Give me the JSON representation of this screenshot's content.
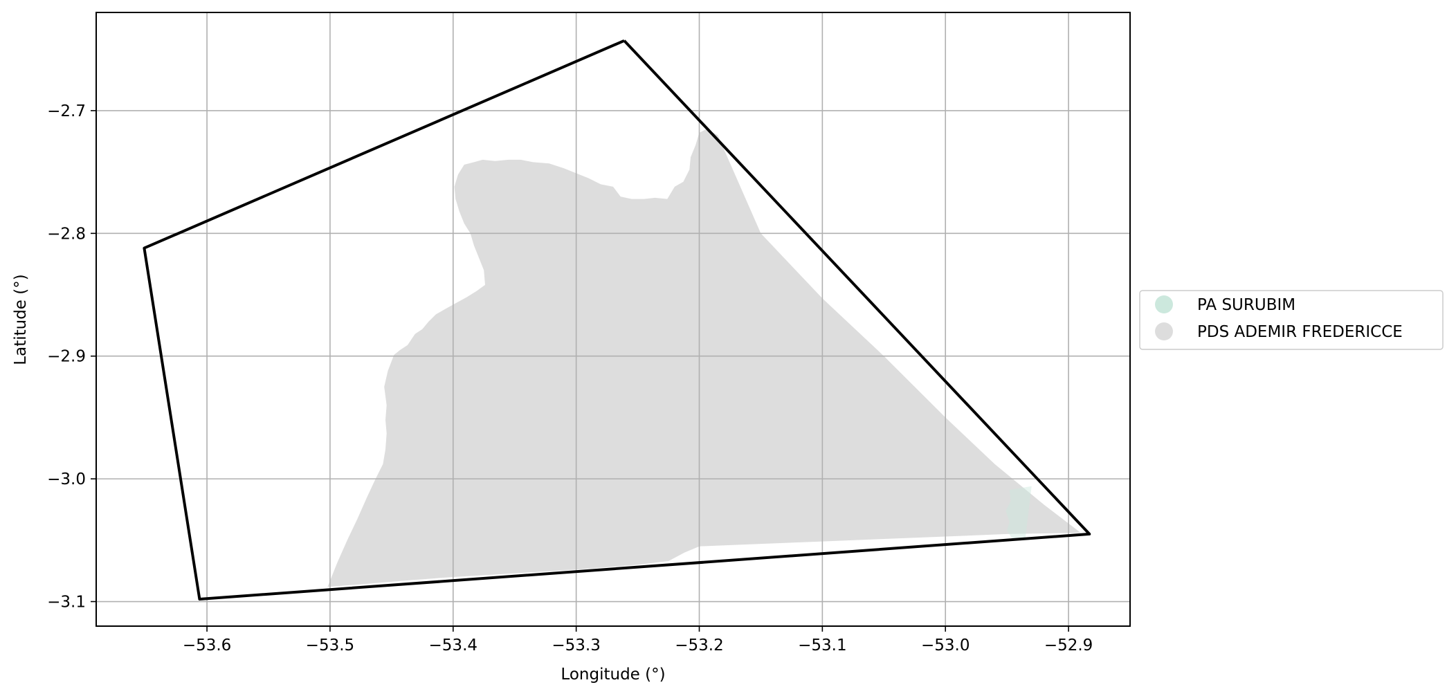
{
  "chart_data": {
    "type": "map",
    "title": "",
    "xlabel": "Longitude (°)",
    "ylabel": "Latitude (°)",
    "xlim": [
      -53.69,
      -52.85
    ],
    "ylim": [
      -3.12,
      -2.62
    ],
    "grid": true,
    "x_ticks": [
      {
        "value": -53.6,
        "label": "−53.6"
      },
      {
        "value": -53.5,
        "label": "−53.5"
      },
      {
        "value": -53.4,
        "label": "−53.4"
      },
      {
        "value": -53.3,
        "label": "−53.3"
      },
      {
        "value": -53.2,
        "label": "−53.2"
      },
      {
        "value": -53.1,
        "label": "−53.1"
      },
      {
        "value": -53.0,
        "label": "−53.0"
      },
      {
        "value": -52.9,
        "label": "−52.9"
      }
    ],
    "y_ticks": [
      {
        "value": -2.7,
        "label": "−2.7"
      },
      {
        "value": -2.8,
        "label": "−2.8"
      },
      {
        "value": -2.9,
        "label": "−2.9"
      },
      {
        "value": -3.0,
        "label": "−3.0"
      },
      {
        "value": -3.1,
        "label": "−3.1"
      }
    ],
    "legend_position": "right",
    "legend": [
      {
        "label": "PA SURUBIM",
        "color": "#cce8dd"
      },
      {
        "label": "PDS ADEMIR FREDERICCE",
        "color": "#dddddd"
      }
    ],
    "layers": [
      {
        "name": "PDS ADEMIR FREDERICCE",
        "type": "polygon",
        "fill": "#dddddd",
        "coordinates": [
          [
            -53.194,
            -2.715
          ],
          [
            -53.2,
            -2.718
          ],
          [
            -53.203,
            -2.728
          ],
          [
            -53.207,
            -2.738
          ],
          [
            -53.208,
            -2.748
          ],
          [
            -53.213,
            -2.758
          ],
          [
            -53.22,
            -2.762
          ],
          [
            -53.226,
            -2.772
          ],
          [
            -53.236,
            -2.771
          ],
          [
            -53.245,
            -2.772
          ],
          [
            -53.255,
            -2.772
          ],
          [
            -53.264,
            -2.77
          ],
          [
            -53.27,
            -2.762
          ],
          [
            -53.28,
            -2.76
          ],
          [
            -53.29,
            -2.755
          ],
          [
            -53.3,
            -2.751
          ],
          [
            -53.31,
            -2.747
          ],
          [
            -53.322,
            -2.743
          ],
          [
            -53.335,
            -2.742
          ],
          [
            -53.345,
            -2.74
          ],
          [
            -53.355,
            -2.74
          ],
          [
            -53.366,
            -2.741
          ],
          [
            -53.376,
            -2.74
          ],
          [
            -53.383,
            -2.742
          ],
          [
            -53.391,
            -2.744
          ],
          [
            -53.396,
            -2.752
          ],
          [
            -53.399,
            -2.762
          ],
          [
            -53.398,
            -2.772
          ],
          [
            -53.395,
            -2.782
          ],
          [
            -53.391,
            -2.792
          ],
          [
            -53.386,
            -2.8
          ],
          [
            -53.383,
            -2.81
          ],
          [
            -53.379,
            -2.82
          ],
          [
            -53.375,
            -2.83
          ],
          [
            -53.374,
            -2.842
          ],
          [
            -53.381,
            -2.847
          ],
          [
            -53.389,
            -2.852
          ],
          [
            -53.398,
            -2.857
          ],
          [
            -53.407,
            -2.862
          ],
          [
            -53.414,
            -2.866
          ],
          [
            -53.42,
            -2.872
          ],
          [
            -53.425,
            -2.878
          ],
          [
            -53.431,
            -2.882
          ],
          [
            -53.437,
            -2.891
          ],
          [
            -53.443,
            -2.895
          ],
          [
            -53.448,
            -2.899
          ],
          [
            -53.453,
            -2.912
          ],
          [
            -53.456,
            -2.925
          ],
          [
            -53.454,
            -2.94
          ],
          [
            -53.455,
            -2.952
          ],
          [
            -53.454,
            -2.963
          ],
          [
            -53.455,
            -2.976
          ],
          [
            -53.457,
            -2.988
          ],
          [
            -53.463,
            -3.0
          ],
          [
            -53.47,
            -3.015
          ],
          [
            -53.478,
            -3.033
          ],
          [
            -53.486,
            -3.05
          ],
          [
            -53.494,
            -3.068
          ],
          [
            -53.502,
            -3.088
          ],
          [
            -53.476,
            -3.086
          ],
          [
            -53.44,
            -3.083
          ],
          [
            -53.4,
            -3.08
          ],
          [
            -53.35,
            -3.077
          ],
          [
            -53.3,
            -3.074
          ],
          [
            -53.25,
            -3.07
          ],
          [
            -53.225,
            -3.067
          ],
          [
            -53.212,
            -3.06
          ],
          [
            -53.2,
            -3.055
          ],
          [
            -53.15,
            -3.053
          ],
          [
            -53.1,
            -3.051
          ],
          [
            -53.05,
            -3.049
          ],
          [
            -53.0,
            -3.047
          ],
          [
            -52.95,
            -3.045
          ],
          [
            -52.89,
            -3.044
          ],
          [
            -52.92,
            -3.021
          ],
          [
            -52.96,
            -2.988
          ],
          [
            -53.0,
            -2.95
          ],
          [
            -53.05,
            -2.9
          ],
          [
            -53.1,
            -2.853
          ],
          [
            -53.15,
            -2.8
          ],
          [
            -53.185,
            -2.72
          ]
        ]
      },
      {
        "name": "PA SURUBIM",
        "type": "polygon",
        "fill": "#cce8dd",
        "opacity": 0.45,
        "coordinates": [
          [
            -52.948,
            -3.009
          ],
          [
            -52.93,
            -3.006
          ],
          [
            -52.935,
            -3.048
          ],
          [
            -52.945,
            -3.05
          ],
          [
            -52.95,
            -3.042
          ],
          [
            -52.948,
            -3.035
          ],
          [
            -52.951,
            -3.026
          ],
          [
            -52.947,
            -3.018
          ]
        ]
      },
      {
        "name": "boundary",
        "type": "polyline",
        "stroke": "#000000",
        "coordinates": [
          [
            -53.261,
            -2.643
          ],
          [
            -53.651,
            -2.812
          ],
          [
            -53.606,
            -3.098
          ],
          [
            -52.883,
            -3.045
          ],
          [
            -53.261,
            -2.643
          ]
        ]
      }
    ]
  }
}
